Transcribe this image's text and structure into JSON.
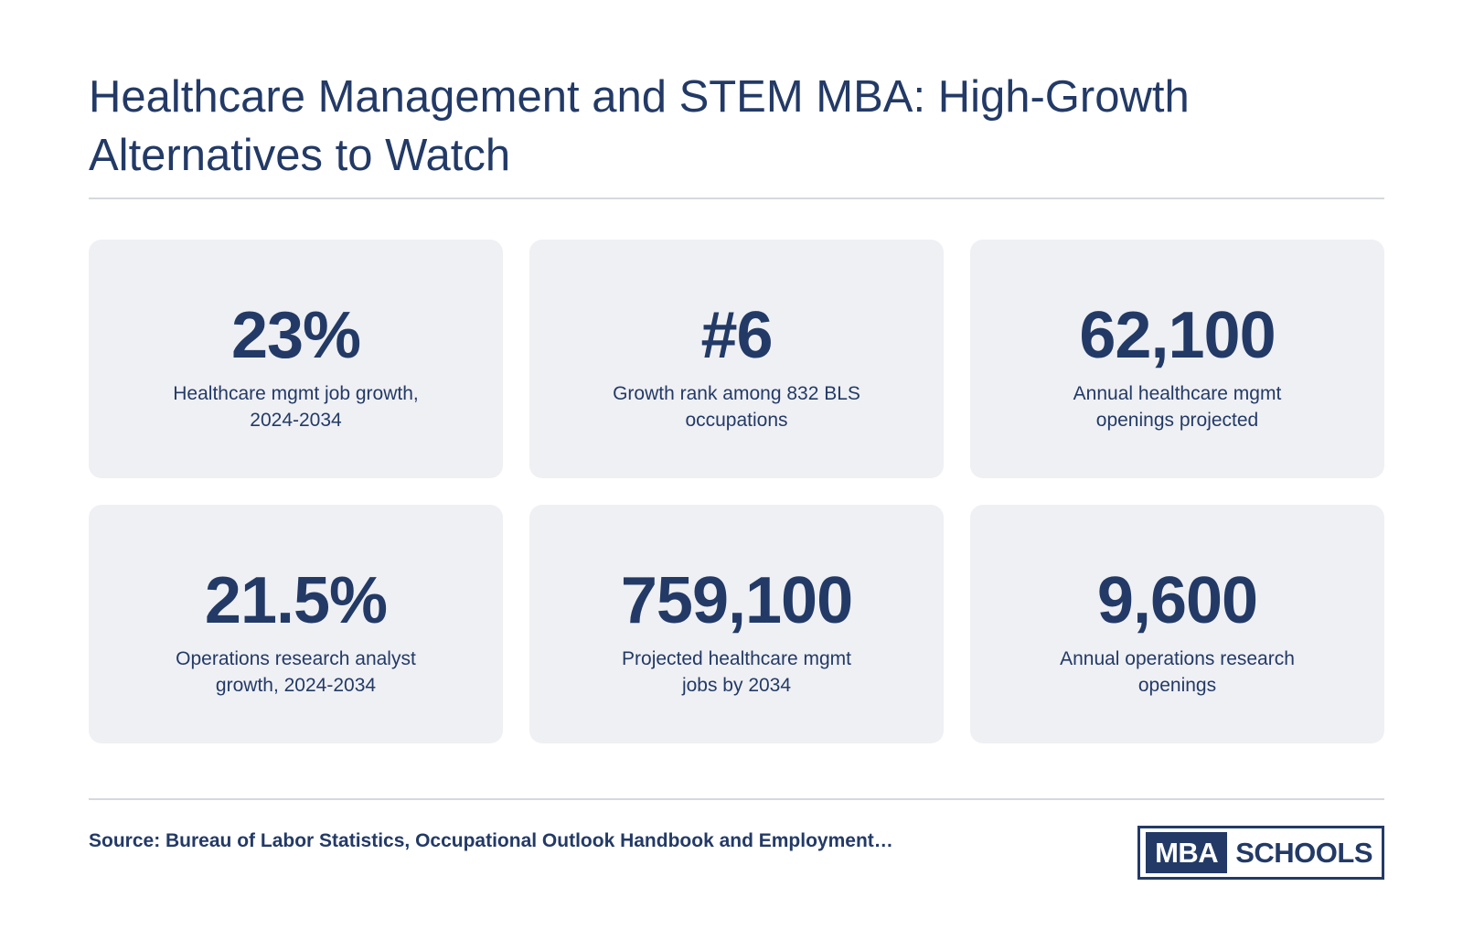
{
  "title": "Healthcare Management and STEM MBA: High-Growth Alternatives to Watch",
  "stats": [
    {
      "value": "23%",
      "label": "Healthcare mgmt job growth, 2024-2034"
    },
    {
      "value": "#6",
      "label": "Growth rank among 832 BLS occupations"
    },
    {
      "value": "62,100",
      "label": "Annual healthcare mgmt openings projected"
    },
    {
      "value": "21.5%",
      "label": "Operations research analyst growth, 2024-2034"
    },
    {
      "value": "759,100",
      "label": "Projected healthcare mgmt jobs by 2034"
    },
    {
      "value": "9,600",
      "label": "Annual operations research openings"
    }
  ],
  "source": "Source: Bureau of Labor Statistics, Occupational Outlook Handbook and Employment…",
  "logo": {
    "part1": "MBA",
    "part2": "SCHOOLS"
  },
  "colors": {
    "primary": "#233a66",
    "card_background": "#eff0f4",
    "divider": "#d6d8de"
  }
}
